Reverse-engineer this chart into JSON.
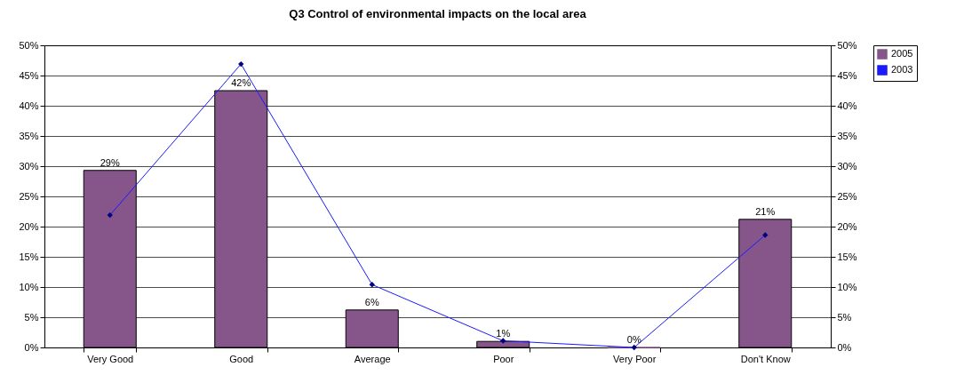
{
  "chart_data": {
    "type": "bar",
    "title": "Q3 Control of environmental impacts on the local area",
    "categories": [
      "Very Good",
      "Good",
      "Average",
      "Poor",
      "Very Poor",
      "Don't Know"
    ],
    "series": [
      {
        "name": "2005",
        "color": "#86568a",
        "values": [
          29.3,
          42.5,
          6.2,
          1.0,
          0,
          21.2
        ],
        "value_labels": [
          "29%",
          "42%",
          "6%",
          "1%",
          "0%",
          "21%"
        ]
      },
      {
        "name": "2003",
        "type": "line",
        "axis": "y2",
        "color": "#1a1aff",
        "marker": "diamond",
        "values": [
          21.9,
          46.9,
          10.4,
          1.1,
          0,
          18.6
        ]
      }
    ],
    "ylim": [
      0,
      50
    ],
    "yticks": [
      {
        "value": 0,
        "label": "0%"
      },
      {
        "value": 5,
        "label": "5%"
      },
      {
        "value": 10,
        "label": "10%"
      },
      {
        "value": 15,
        "label": "15%"
      },
      {
        "value": 20,
        "label": "20%"
      },
      {
        "value": 25,
        "label": "25%"
      },
      {
        "value": 30,
        "label": "30%"
      },
      {
        "value": 35,
        "label": "35%"
      },
      {
        "value": 40,
        "label": "40%"
      },
      {
        "value": 45,
        "label": "45%"
      },
      {
        "value": 50,
        "label": "50%"
      }
    ],
    "y2lim": [
      0,
      50
    ],
    "y2ticks": [
      {
        "value": 0,
        "label": "0%"
      },
      {
        "value": 5,
        "label": "5%"
      },
      {
        "value": 10,
        "label": "10%"
      },
      {
        "value": 15,
        "label": "15%"
      },
      {
        "value": 20,
        "label": "20%"
      },
      {
        "value": 25,
        "label": "25%"
      },
      {
        "value": 30,
        "label": "30%"
      },
      {
        "value": 35,
        "label": "35%"
      },
      {
        "value": 40,
        "label": "40%"
      },
      {
        "value": 45,
        "label": "45%"
      },
      {
        "value": 50,
        "label": "50%"
      }
    ],
    "grid": "y",
    "legend": "right"
  }
}
